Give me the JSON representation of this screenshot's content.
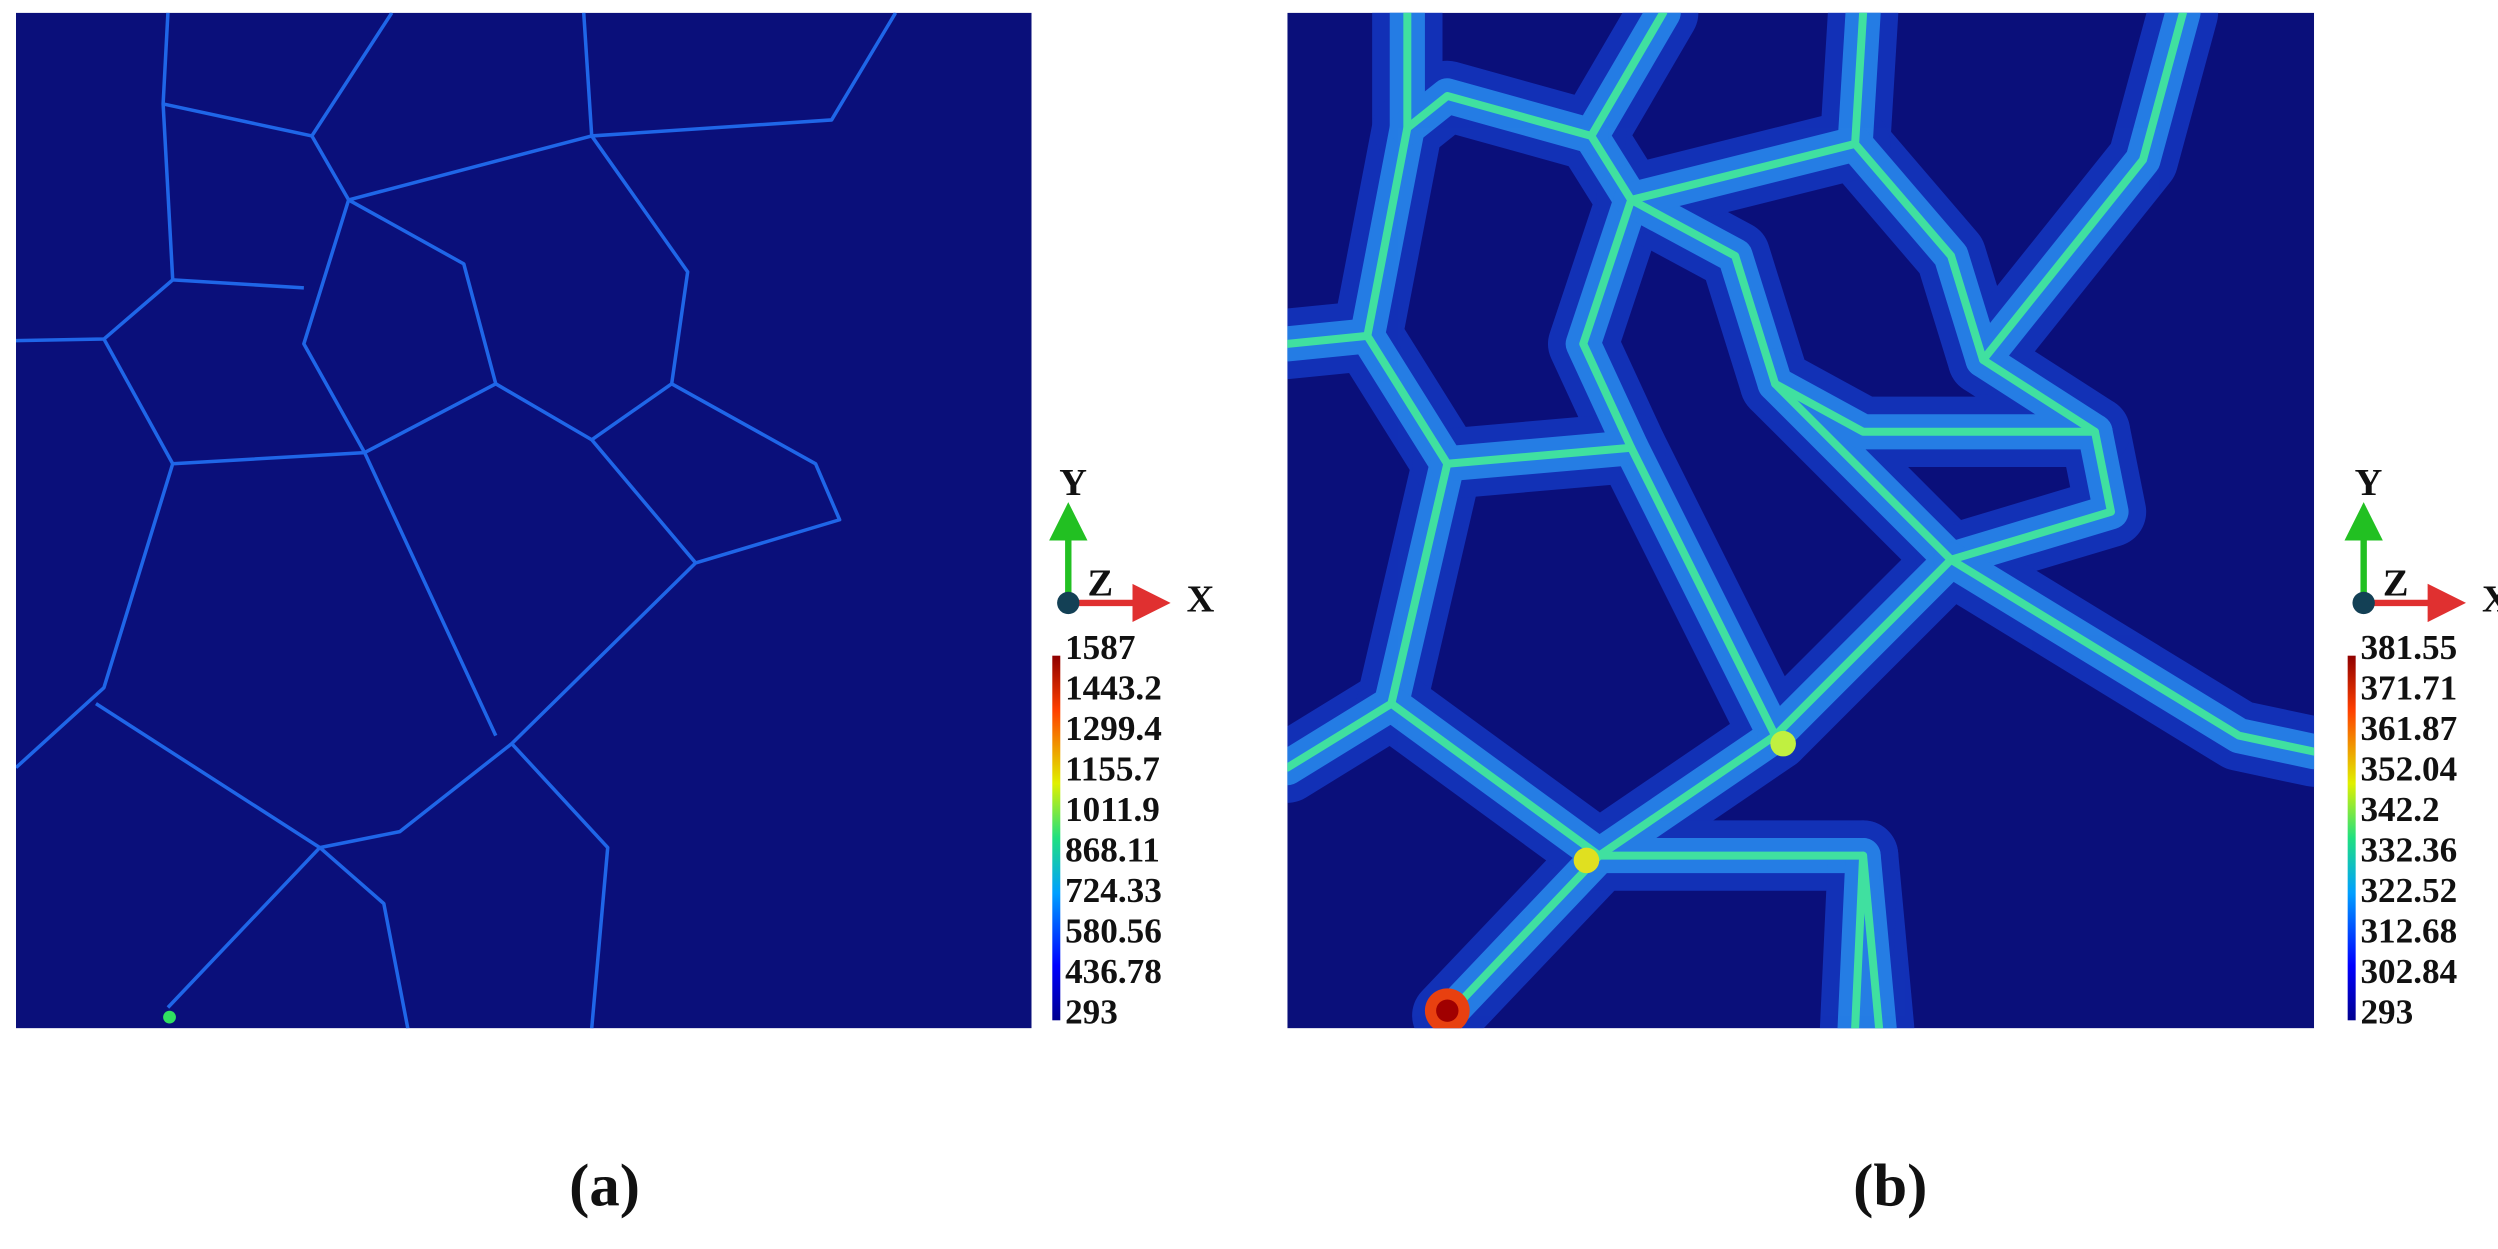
{
  "panels": [
    {
      "caption": "(a)",
      "axes": {
        "y": "Y",
        "z": "Z",
        "x": "X"
      },
      "colorbar": {
        "labels": [
          "1587",
          "1443.2",
          "1299.4",
          "1155.7",
          "1011.9",
          "868.11",
          "724.33",
          "580.56",
          "436.78",
          "293"
        ]
      }
    },
    {
      "caption": "(b)",
      "axes": {
        "y": "Y",
        "z": "Z",
        "x": "X"
      },
      "colorbar": {
        "labels": [
          "381.55",
          "371.71",
          "361.87",
          "352.04",
          "342.2",
          "332.36",
          "322.52",
          "312.68",
          "302.84",
          "293"
        ]
      }
    }
  ]
}
